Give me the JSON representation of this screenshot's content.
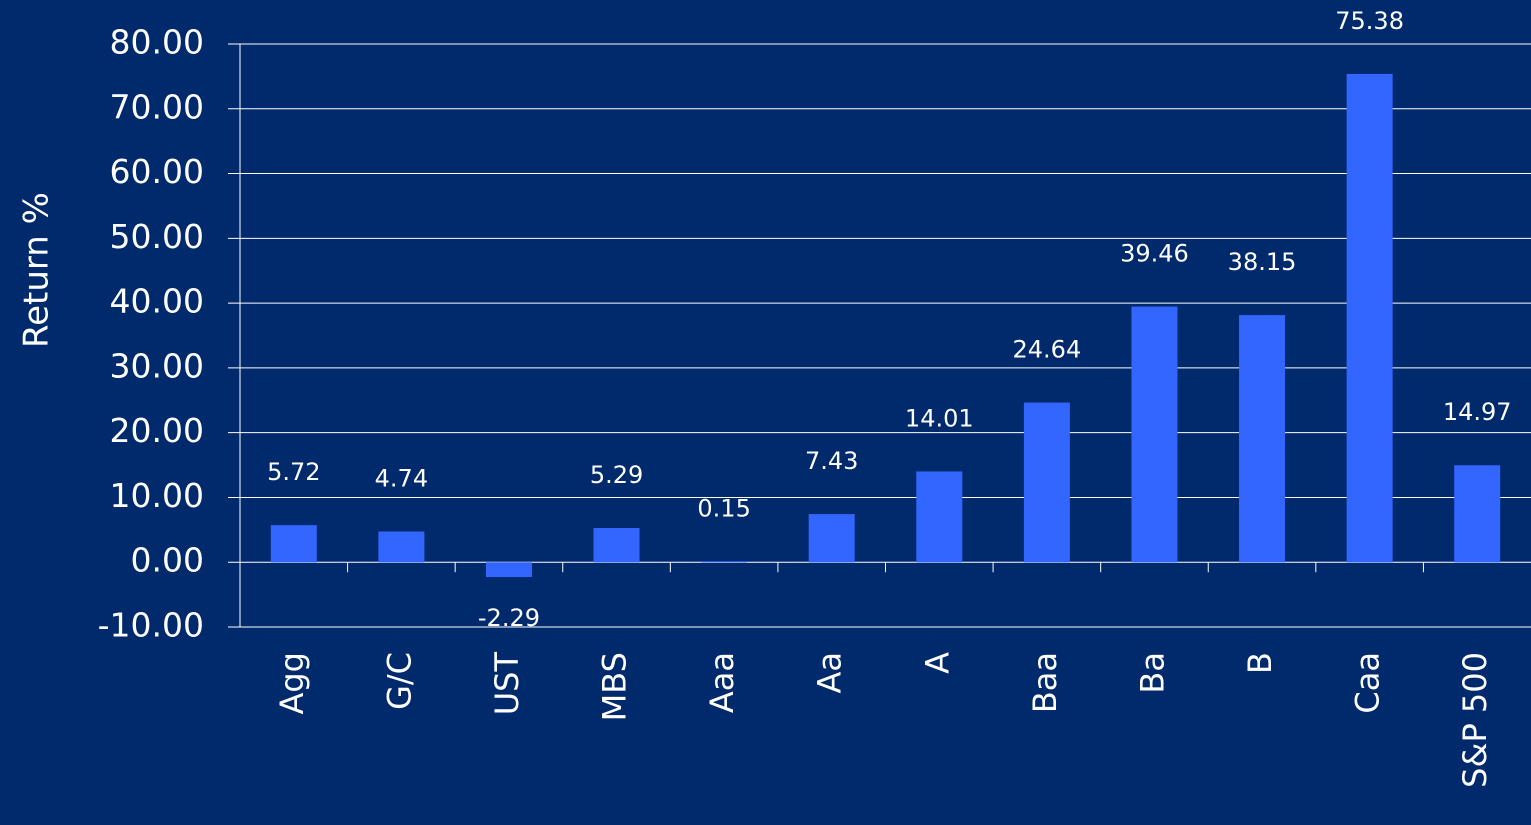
{
  "chart_data": {
    "type": "bar",
    "y_label": "Return %",
    "categories": [
      "Agg",
      "G/C",
      "UST",
      "MBS",
      "Aaa",
      "Aa",
      "A",
      "Baa",
      "Ba",
      "B",
      "Caa",
      "S&P 500"
    ],
    "values": [
      5.72,
      4.74,
      -2.29,
      5.29,
      0.15,
      7.43,
      14.01,
      24.64,
      39.46,
      38.15,
      75.38,
      14.97
    ],
    "color": "#3366ff",
    "ylim": [
      -10,
      80
    ],
    "yticks": [
      {
        "value": -10,
        "label": "-10.00"
      },
      {
        "value": 0,
        "label": "0.00"
      },
      {
        "value": 10,
        "label": "10.00"
      },
      {
        "value": 20,
        "label": "20.00"
      },
      {
        "value": 30,
        "label": "30.00"
      },
      {
        "value": 40,
        "label": "40.00"
      },
      {
        "value": 50,
        "label": "50.00"
      },
      {
        "value": 60,
        "label": "60.00"
      },
      {
        "value": 70,
        "label": "70.00"
      },
      {
        "value": 80,
        "label": "80.00"
      }
    ],
    "grid": true
  }
}
